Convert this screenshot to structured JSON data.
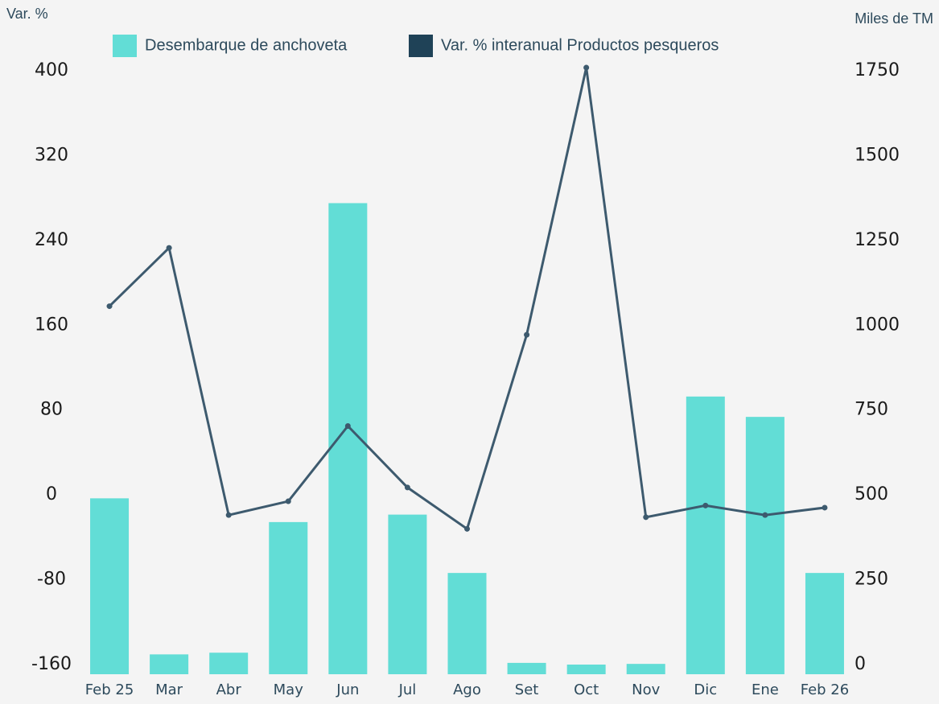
{
  "chart_data": {
    "type": "bar_line",
    "y_label": "Var. %",
    "y2_label": "Miles de TM",
    "categories": [
      "Feb 25",
      "Mar",
      "Abr",
      "May",
      "Jun",
      "Jul",
      "Ago",
      "Set",
      "Oct",
      "Nov",
      "Dic",
      "Ene",
      "Feb 26"
    ],
    "series": [
      {
        "name": "Desembarque de anchoveta",
        "type": "bar",
        "axis": "y2",
        "color": "#62ddd6",
        "values": [
          490,
          30,
          35,
          420,
          1360,
          442,
          270,
          5,
          0,
          2,
          790,
          730,
          270
        ]
      },
      {
        "name": "Var. % interanual Productos pesqueros",
        "type": "line",
        "axis": "y",
        "color": "#3d5a6e",
        "values": [
          178,
          233,
          -19,
          -6,
          65,
          7,
          -32,
          151,
          403,
          -21,
          -10,
          -19,
          -12
        ]
      }
    ],
    "ylim": [
      -160,
      400
    ],
    "yticks": [
      -160,
      -80,
      0,
      80,
      160,
      240,
      320,
      400
    ],
    "y2lim": [
      0,
      1750
    ],
    "y2ticks": [
      0,
      250,
      500,
      750,
      1000,
      1250,
      1500,
      1750
    ],
    "legend": "top"
  }
}
